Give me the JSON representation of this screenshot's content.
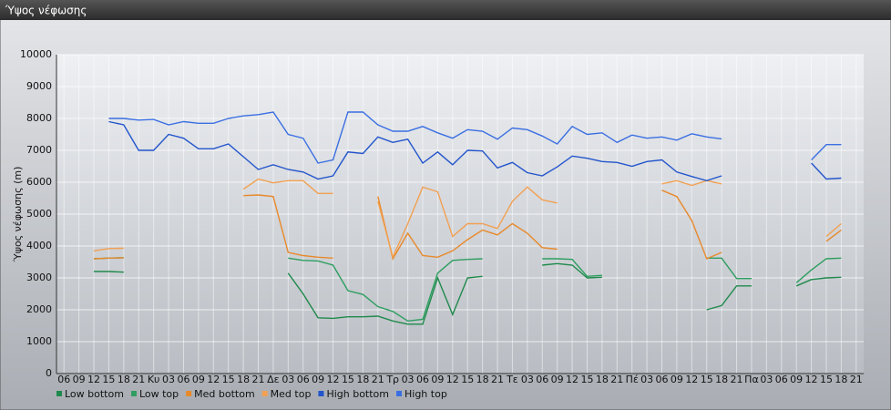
{
  "chart_data": {
    "type": "line",
    "title": "Ύψος νέφωσης",
    "y_label": "Ύψος νέφωσης (m)",
    "categories": [
      "06",
      "09",
      "12",
      "15",
      "18",
      "21",
      "Κυ",
      "03",
      "06",
      "09",
      "12",
      "15",
      "18",
      "21",
      "Δε",
      "03",
      "06",
      "09",
      "12",
      "15",
      "18",
      "21",
      "Τρ",
      "03",
      "06",
      "09",
      "12",
      "15",
      "18",
      "21",
      "Τε",
      "03",
      "06",
      "09",
      "12",
      "15",
      "18",
      "21",
      "Πέ",
      "03",
      "06",
      "09",
      "12",
      "15",
      "18",
      "21",
      "Πα",
      "03",
      "06",
      "09",
      "12",
      "15",
      "18",
      "21"
    ],
    "series": [
      {
        "name": "Low bottom",
        "color": "#1f8a4c",
        "values": [
          null,
          null,
          3200,
          3200,
          3180,
          null,
          null,
          null,
          null,
          null,
          null,
          null,
          null,
          null,
          null,
          3150,
          2500,
          1750,
          1730,
          1780,
          1780,
          1800,
          1650,
          1550,
          1550,
          3000,
          1850,
          3000,
          3050,
          null,
          null,
          null,
          3400,
          3450,
          3400,
          3000,
          3020,
          null,
          null,
          null,
          null,
          null,
          null,
          2000,
          2130,
          2750,
          2750,
          null,
          null,
          2750,
          2950,
          3000,
          3020,
          null
        ]
      },
      {
        "name": "Low top",
        "color": "#2e9e60",
        "values": [
          null,
          null,
          3600,
          3620,
          3630,
          null,
          null,
          null,
          null,
          null,
          null,
          null,
          null,
          null,
          null,
          3620,
          3550,
          3530,
          3400,
          2600,
          2480,
          2100,
          1950,
          1650,
          1700,
          3150,
          3550,
          3580,
          3600,
          null,
          null,
          null,
          3600,
          3600,
          3580,
          3050,
          3080,
          null,
          null,
          null,
          null,
          null,
          null,
          3620,
          3620,
          2980,
          2980,
          null,
          null,
          2850,
          3250,
          3600,
          3620,
          null
        ]
      },
      {
        "name": "Med bottom",
        "color": "#e8892b",
        "values": [
          null,
          null,
          3600,
          3620,
          3630,
          null,
          null,
          null,
          null,
          null,
          null,
          null,
          5580,
          5600,
          5550,
          3800,
          3700,
          3650,
          3620,
          null,
          null,
          5550,
          3600,
          4400,
          3700,
          3650,
          3850,
          4200,
          4500,
          4350,
          4700,
          4400,
          3950,
          3900,
          null,
          null,
          null,
          null,
          null,
          null,
          5750,
          5550,
          4800,
          3600,
          3800,
          null,
          null,
          null,
          null,
          null,
          null,
          4150,
          4500,
          null
        ]
      },
      {
        "name": "Med top",
        "color": "#f2a052",
        "values": [
          null,
          null,
          3850,
          3920,
          3930,
          null,
          null,
          null,
          null,
          null,
          null,
          null,
          5780,
          6100,
          5980,
          6050,
          6050,
          5650,
          5650,
          null,
          null,
          5400,
          3650,
          4700,
          5850,
          5700,
          4300,
          4700,
          4700,
          4550,
          5400,
          5850,
          5450,
          5350,
          null,
          null,
          null,
          null,
          null,
          null,
          5950,
          6050,
          5900,
          6050,
          5950,
          null,
          null,
          null,
          null,
          null,
          null,
          4300,
          4700,
          null
        ]
      },
      {
        "name": "High bottom",
        "color": "#2355cc",
        "values": [
          null,
          null,
          null,
          7900,
          7800,
          7000,
          7000,
          7500,
          7380,
          7050,
          7050,
          7200,
          6800,
          6400,
          6550,
          6400,
          6320,
          6100,
          6200,
          6950,
          6900,
          7420,
          7250,
          7350,
          6600,
          6950,
          6550,
          7000,
          6980,
          6450,
          6620,
          6300,
          6200,
          6480,
          6820,
          6750,
          6650,
          6620,
          6500,
          6650,
          6700,
          6320,
          6180,
          6050,
          6200,
          null,
          null,
          null,
          null,
          null,
          6600,
          6100,
          6130,
          null
        ]
      },
      {
        "name": "High top",
        "color": "#3b6fe2",
        "values": [
          null,
          null,
          null,
          8000,
          8000,
          7950,
          7970,
          7800,
          7900,
          7850,
          7850,
          8000,
          8080,
          8120,
          8200,
          7500,
          7380,
          6600,
          6700,
          8200,
          8200,
          7800,
          7600,
          7600,
          7750,
          7550,
          7380,
          7650,
          7600,
          7350,
          7700,
          7650,
          7450,
          7200,
          7750,
          7500,
          7550,
          7250,
          7480,
          7380,
          7420,
          7320,
          7520,
          7420,
          7360,
          null,
          null,
          null,
          null,
          null,
          6700,
          7180,
          7180,
          null
        ]
      }
    ],
    "ylim": [
      0,
      10000
    ],
    "yticks": [
      0,
      1000,
      2000,
      3000,
      4000,
      5000,
      6000,
      7000,
      8000,
      9000,
      10000
    ],
    "grid": true
  }
}
